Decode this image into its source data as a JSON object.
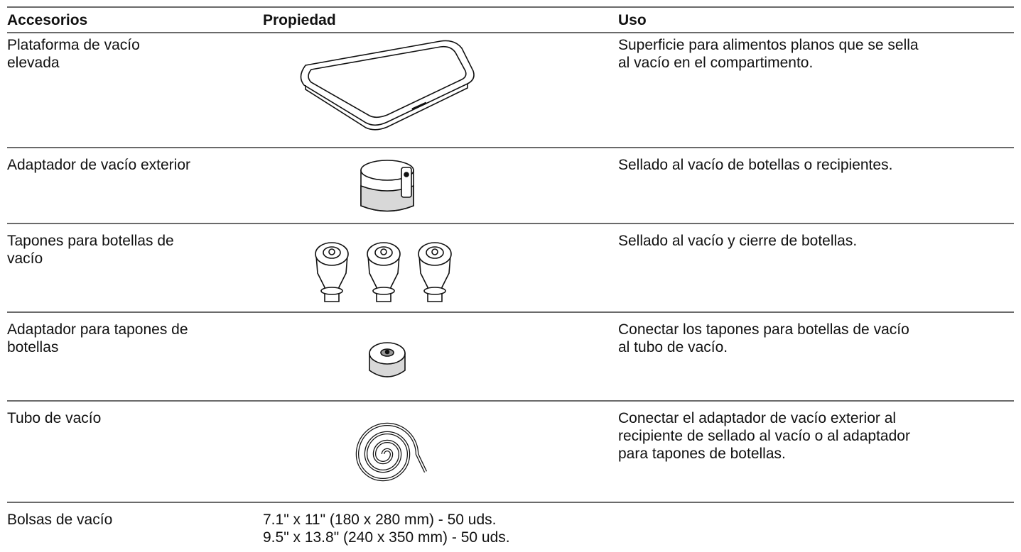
{
  "table": {
    "headers": [
      "Accesorios",
      "Propiedad",
      "Uso"
    ],
    "rows": [
      {
        "accessory": [
          "Plataforma de vacío",
          "elevada"
        ],
        "use": [
          "Superficie para alimentos planos que se sella",
          "al vacío en el compartimento."
        ]
      },
      {
        "accessory": [
          "Adaptador de vacío exterior"
        ],
        "use": [
          "Sellado al vacío de botellas o recipientes."
        ]
      },
      {
        "accessory": [
          "Tapones para botellas de",
          "vacío"
        ],
        "use": [
          "Sellado al vacío y cierre de botellas."
        ]
      },
      {
        "accessory": [
          "Adaptador para tapones de",
          "botellas"
        ],
        "use": [
          "Conectar los tapones para botellas de vacío",
          "al tubo de vacío."
        ]
      },
      {
        "accessory": [
          "Tubo de vacío"
        ],
        "use": [
          "Conectar el adaptador de vacío exterior al",
          "recipiente de sellado al vacío o al adaptador",
          "para tapones de botellas."
        ]
      },
      {
        "accessory": [
          "Bolsas de vacío"
        ],
        "property": [
          "7.1\" x 11\" (180 x 280 mm) - 50 uds.",
          "9.5\" x 13.8\" (240 x 350 mm) - 50 uds."
        ]
      }
    ]
  }
}
